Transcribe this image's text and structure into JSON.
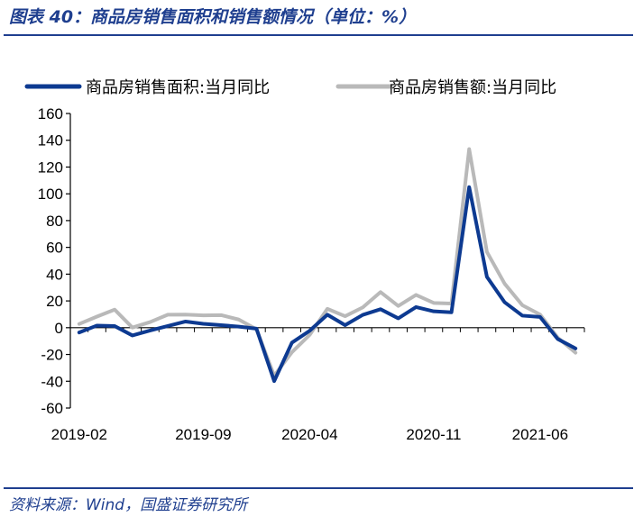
{
  "header": {
    "title": "图表 40：商品房销售面积和销售额情况（单位：%）"
  },
  "footer": {
    "source": "资料来源：Wind，国盛证券研究所"
  },
  "colors": {
    "accent": "#1f3f8f",
    "series_area": "#0d3a91",
    "series_amount": "#b9b9b9"
  },
  "chart_data": {
    "type": "line",
    "title": "",
    "xlabel": "",
    "ylabel": "",
    "ylim": [
      -60,
      160
    ],
    "yticks": [
      -60,
      -40,
      -20,
      0,
      20,
      40,
      60,
      80,
      100,
      120,
      140,
      160
    ],
    "x": [
      "2019-02",
      "2019-03",
      "2019-04",
      "2019-05",
      "2019-06",
      "2019-07",
      "2019-08",
      "2019-09",
      "2019-10",
      "2019-11",
      "2019-12",
      "2020-02",
      "2020-03",
      "2020-04",
      "2020-05",
      "2020-06",
      "2020-07",
      "2020-08",
      "2020-09",
      "2020-10",
      "2020-11",
      "2020-12",
      "2021-02",
      "2021-03",
      "2021-04",
      "2021-05",
      "2021-06",
      "2021-07",
      "2021-08"
    ],
    "xtick_labels": [
      "2019-02",
      "2019-09",
      "2020-04",
      "2020-11",
      "2021-06"
    ],
    "legend": "top",
    "grid": false,
    "series": [
      {
        "name": "商品房销售面积:当月同比",
        "values": [
          -3.6,
          1.6,
          1.2,
          -5.8,
          -2.1,
          1.3,
          4.6,
          2.9,
          1.9,
          0.8,
          -0.7,
          -39.9,
          -11.2,
          -2.3,
          9.7,
          1.9,
          9.6,
          13.8,
          7.0,
          15.4,
          12.2,
          11.5,
          105,
          38,
          19,
          9,
          8,
          -8.5,
          -15.5
        ]
      },
      {
        "name": "商品房销售额:当月同比",
        "values": [
          2.8,
          8.3,
          13.5,
          0.1,
          4.2,
          9.7,
          9.8,
          9.2,
          9.4,
          6.1,
          -1.2,
          -35.9,
          -18.3,
          -5.4,
          14.1,
          8.6,
          15.2,
          26.6,
          16.2,
          24.5,
          18.5,
          18.0,
          133.4,
          56.6,
          32.9,
          16.8,
          9.8,
          -7.5,
          -18.7
        ]
      }
    ]
  }
}
